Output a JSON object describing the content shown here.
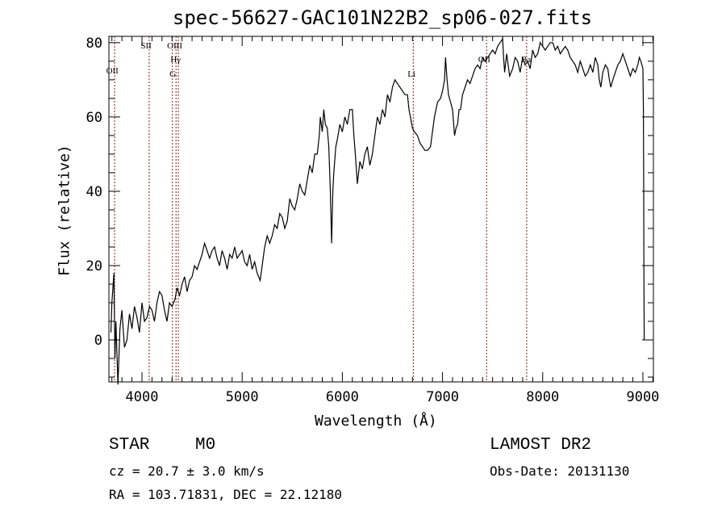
{
  "chart_data": {
    "type": "line",
    "title": "spec-56627-GAC101N22B2_sp06-027.fits",
    "xlabel": "Wavelength (Å)",
    "ylabel": "Flux (relative)",
    "xlim": [
      3670,
      9105
    ],
    "ylim": [
      -11.3,
      81.7
    ],
    "xticks": [
      4000,
      5000,
      6000,
      7000,
      8000,
      9000
    ],
    "yticks": [
      0,
      20,
      40,
      60,
      80
    ],
    "x_minor_step": 100,
    "y_minor_step": 5,
    "grid": false,
    "line_color": "#000000",
    "marker_line_color": "#8b1a1a",
    "line_markers": [
      {
        "label": "OII",
        "wavelength": 3727
      },
      {
        "label": "SII",
        "wavelength": 4072
      },
      {
        "label": "G",
        "wavelength": 4304
      },
      {
        "label": "Hγ",
        "wavelength": 4340
      },
      {
        "label": "OIII",
        "wavelength": 4363
      },
      {
        "label": "Li",
        "wavelength": 6708
      },
      {
        "label": "OII",
        "wavelength": 7440
      },
      {
        "label": "Ba",
        "wavelength": 7840
      }
    ],
    "series": [
      {
        "name": "flux",
        "points": [
          [
            3690,
            2
          ],
          [
            3700,
            10
          ],
          [
            3720,
            18
          ],
          [
            3730,
            -5
          ],
          [
            3740,
            5
          ],
          [
            3760,
            -12
          ],
          [
            3780,
            3
          ],
          [
            3800,
            8
          ],
          [
            3825,
            -2
          ],
          [
            3850,
            0
          ],
          [
            3875,
            7
          ],
          [
            3900,
            3
          ],
          [
            3925,
            9
          ],
          [
            3950,
            6
          ],
          [
            3975,
            2
          ],
          [
            4000,
            10
          ],
          [
            4025,
            5
          ],
          [
            4050,
            6
          ],
          [
            4075,
            9
          ],
          [
            4100,
            8
          ],
          [
            4125,
            5
          ],
          [
            4150,
            10
          ],
          [
            4175,
            13
          ],
          [
            4200,
            12
          ],
          [
            4225,
            8
          ],
          [
            4250,
            5
          ],
          [
            4275,
            10
          ],
          [
            4300,
            9
          ],
          [
            4330,
            11
          ],
          [
            4350,
            14
          ],
          [
            4375,
            12
          ],
          [
            4400,
            15
          ],
          [
            4425,
            17
          ],
          [
            4450,
            13
          ],
          [
            4475,
            16
          ],
          [
            4500,
            17
          ],
          [
            4525,
            20
          ],
          [
            4550,
            19
          ],
          [
            4575,
            21
          ],
          [
            4600,
            23
          ],
          [
            4625,
            26
          ],
          [
            4650,
            24
          ],
          [
            4675,
            22
          ],
          [
            4700,
            24
          ],
          [
            4725,
            25
          ],
          [
            4750,
            22
          ],
          [
            4775,
            20
          ],
          [
            4800,
            24
          ],
          [
            4825,
            22
          ],
          [
            4850,
            19
          ],
          [
            4875,
            23
          ],
          [
            4900,
            22
          ],
          [
            4925,
            25
          ],
          [
            4950,
            22
          ],
          [
            5000,
            24
          ],
          [
            5025,
            21
          ],
          [
            5050,
            20
          ],
          [
            5075,
            23
          ],
          [
            5100,
            19
          ],
          [
            5125,
            21
          ],
          [
            5150,
            18
          ],
          [
            5180,
            16
          ],
          [
            5200,
            20
          ],
          [
            5225,
            25
          ],
          [
            5250,
            28
          ],
          [
            5275,
            26
          ],
          [
            5300,
            28
          ],
          [
            5325,
            31
          ],
          [
            5350,
            30
          ],
          [
            5375,
            34
          ],
          [
            5400,
            33
          ],
          [
            5425,
            30
          ],
          [
            5450,
            32
          ],
          [
            5475,
            38
          ],
          [
            5500,
            36
          ],
          [
            5525,
            35
          ],
          [
            5550,
            38
          ],
          [
            5575,
            42
          ],
          [
            5600,
            40
          ],
          [
            5625,
            39
          ],
          [
            5650,
            43
          ],
          [
            5675,
            47
          ],
          [
            5700,
            45
          ],
          [
            5725,
            50
          ],
          [
            5750,
            50
          ],
          [
            5770,
            55
          ],
          [
            5780,
            60
          ],
          [
            5800,
            56
          ],
          [
            5815,
            62
          ],
          [
            5830,
            58
          ],
          [
            5850,
            57
          ],
          [
            5865,
            52
          ],
          [
            5880,
            40
          ],
          [
            5893,
            26
          ],
          [
            5905,
            40
          ],
          [
            5915,
            45
          ],
          [
            5935,
            52
          ],
          [
            5950,
            54
          ],
          [
            5975,
            58
          ],
          [
            6000,
            56
          ],
          [
            6025,
            60
          ],
          [
            6050,
            58
          ],
          [
            6075,
            62
          ],
          [
            6100,
            62
          ],
          [
            6115,
            55
          ],
          [
            6130,
            50
          ],
          [
            6150,
            42
          ],
          [
            6175,
            48
          ],
          [
            6200,
            46
          ],
          [
            6225,
            50
          ],
          [
            6250,
            52
          ],
          [
            6275,
            47
          ],
          [
            6300,
            50
          ],
          [
            6325,
            55
          ],
          [
            6350,
            60
          ],
          [
            6375,
            58
          ],
          [
            6400,
            62
          ],
          [
            6425,
            60
          ],
          [
            6450,
            66
          ],
          [
            6475,
            64
          ],
          [
            6500,
            68
          ],
          [
            6525,
            70
          ],
          [
            6550,
            69
          ],
          [
            6575,
            68
          ],
          [
            6600,
            67
          ],
          [
            6625,
            66
          ],
          [
            6650,
            66
          ],
          [
            6665,
            62
          ],
          [
            6680,
            60
          ],
          [
            6700,
            57
          ],
          [
            6720,
            56
          ],
          [
            6750,
            55
          ],
          [
            6775,
            53
          ],
          [
            6800,
            52
          ],
          [
            6825,
            51
          ],
          [
            6850,
            51
          ],
          [
            6880,
            52
          ],
          [
            6900,
            56
          ],
          [
            6920,
            60
          ],
          [
            6950,
            64
          ],
          [
            6980,
            65
          ],
          [
            7000,
            67
          ],
          [
            7020,
            70
          ],
          [
            7030,
            76
          ],
          [
            7045,
            70
          ],
          [
            7060,
            66
          ],
          [
            7080,
            64
          ],
          [
            7100,
            62
          ],
          [
            7120,
            55
          ],
          [
            7135,
            57
          ],
          [
            7150,
            58
          ],
          [
            7165,
            62
          ],
          [
            7180,
            62
          ],
          [
            7200,
            66
          ],
          [
            7225,
            68
          ],
          [
            7250,
            70
          ],
          [
            7275,
            69
          ],
          [
            7300,
            71
          ],
          [
            7325,
            73
          ],
          [
            7350,
            74
          ],
          [
            7375,
            73
          ],
          [
            7400,
            76
          ],
          [
            7425,
            75
          ],
          [
            7450,
            76
          ],
          [
            7475,
            77
          ],
          [
            7500,
            78
          ],
          [
            7525,
            77
          ],
          [
            7550,
            79
          ],
          [
            7575,
            80
          ],
          [
            7600,
            81
          ],
          [
            7610,
            76
          ],
          [
            7620,
            72
          ],
          [
            7640,
            77
          ],
          [
            7650,
            75
          ],
          [
            7670,
            71
          ],
          [
            7700,
            73
          ],
          [
            7725,
            76
          ],
          [
            7750,
            75
          ],
          [
            7775,
            72
          ],
          [
            7800,
            76
          ],
          [
            7825,
            74
          ],
          [
            7850,
            75
          ],
          [
            7875,
            73
          ],
          [
            7900,
            78
          ],
          [
            7925,
            76
          ],
          [
            7950,
            77
          ],
          [
            7975,
            80
          ],
          [
            8000,
            79
          ],
          [
            8025,
            78
          ],
          [
            8050,
            79
          ],
          [
            8075,
            80
          ],
          [
            8100,
            80
          ],
          [
            8125,
            78
          ],
          [
            8150,
            79
          ],
          [
            8175,
            77
          ],
          [
            8200,
            78
          ],
          [
            8225,
            79
          ],
          [
            8250,
            78
          ],
          [
            8275,
            76
          ],
          [
            8300,
            75
          ],
          [
            8325,
            74
          ],
          [
            8350,
            72
          ],
          [
            8375,
            75
          ],
          [
            8400,
            73
          ],
          [
            8425,
            71
          ],
          [
            8450,
            72
          ],
          [
            8475,
            74
          ],
          [
            8500,
            72
          ],
          [
            8525,
            76
          ],
          [
            8550,
            74
          ],
          [
            8565,
            70
          ],
          [
            8580,
            68
          ],
          [
            8600,
            72
          ],
          [
            8625,
            74
          ],
          [
            8650,
            73
          ],
          [
            8665,
            70
          ],
          [
            8680,
            68
          ],
          [
            8700,
            70
          ],
          [
            8725,
            72
          ],
          [
            8750,
            74
          ],
          [
            8775,
            75
          ],
          [
            8800,
            77
          ],
          [
            8825,
            75
          ],
          [
            8850,
            73
          ],
          [
            8875,
            71
          ],
          [
            8900,
            73
          ],
          [
            8925,
            72
          ],
          [
            8950,
            74
          ],
          [
            8965,
            76
          ],
          [
            8980,
            75
          ],
          [
            9000,
            73
          ],
          [
            9005,
            62
          ],
          [
            9008,
            40
          ],
          [
            9010,
            20
          ],
          [
            9013,
            0
          ]
        ]
      }
    ]
  },
  "info": {
    "class": "STAR",
    "subclass": "M0",
    "cz": "cz = 20.7 ± 3.0 km/s",
    "coords": "RA = 103.71831, DEC =  22.12180",
    "survey": "LAMOST DR2",
    "obs_date": "Obs-Date: 20131130"
  }
}
